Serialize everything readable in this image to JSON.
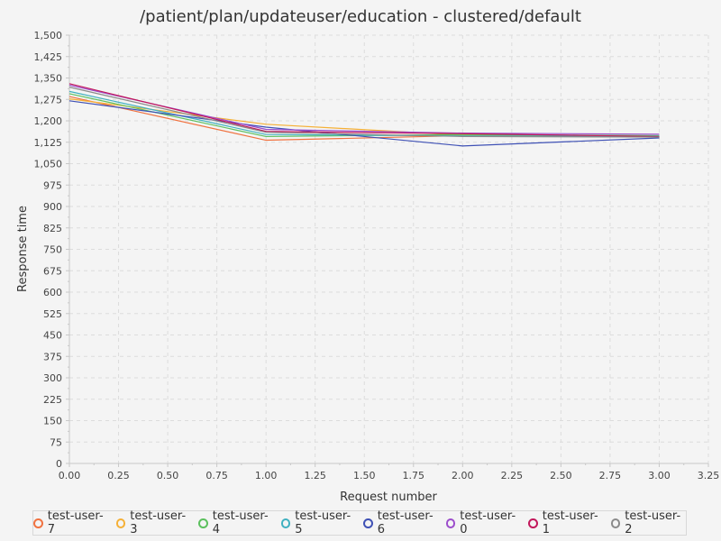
{
  "chart_data": {
    "type": "line",
    "title": "/patient/plan/updateuser/education - clustered/default",
    "xlabel": "Request number",
    "ylabel": "Response time",
    "xlim": [
      0,
      3.25
    ],
    "ylim": [
      0,
      1500
    ],
    "x_ticks": [
      "0.00",
      "0.25",
      "0.50",
      "0.75",
      "1.00",
      "1.25",
      "1.50",
      "1.75",
      "2.00",
      "2.25",
      "2.50",
      "2.75",
      "3.00",
      "3.25"
    ],
    "y_ticks": [
      "0",
      "75",
      "150",
      "225",
      "300",
      "375",
      "450",
      "525",
      "600",
      "675",
      "750",
      "825",
      "900",
      "975",
      "1,050",
      "1,125",
      "1,200",
      "1,275",
      "1,350",
      "1,425",
      "1,500"
    ],
    "grid": true,
    "legend_position": "bottom",
    "series": [
      {
        "name": "test-user-7",
        "color": "#f07240",
        "x": [
          0,
          1,
          2,
          3
        ],
        "y": [
          1285,
          1132,
          1148,
          1143
        ]
      },
      {
        "name": "test-user-3",
        "color": "#f5b036",
        "x": [
          0,
          1,
          2,
          3
        ],
        "y": [
          1277,
          1188,
          1150,
          1146
        ]
      },
      {
        "name": "test-user-4",
        "color": "#5cc05e",
        "x": [
          0,
          1,
          2,
          3
        ],
        "y": [
          1295,
          1145,
          1152,
          1148
        ]
      },
      {
        "name": "test-user-5",
        "color": "#3fb0c0",
        "x": [
          0,
          1,
          2,
          3
        ],
        "y": [
          1303,
          1152,
          1147,
          1146
        ]
      },
      {
        "name": "test-user-6",
        "color": "#3f51b5",
        "x": [
          0,
          1,
          2,
          3
        ],
        "y": [
          1270,
          1178,
          1112,
          1140
        ]
      },
      {
        "name": "test-user-0",
        "color": "#9c4dcc",
        "x": [
          0,
          1,
          2,
          3
        ],
        "y": [
          1325,
          1170,
          1157,
          1153
        ]
      },
      {
        "name": "test-user-1",
        "color": "#c2185b",
        "x": [
          0,
          1,
          2,
          3
        ],
        "y": [
          1330,
          1163,
          1155,
          1145
        ]
      },
      {
        "name": "test-user-2",
        "color": "#8a8a8a",
        "x": [
          0,
          1,
          2,
          3
        ],
        "y": [
          1318,
          1160,
          1145,
          1143
        ]
      }
    ]
  }
}
